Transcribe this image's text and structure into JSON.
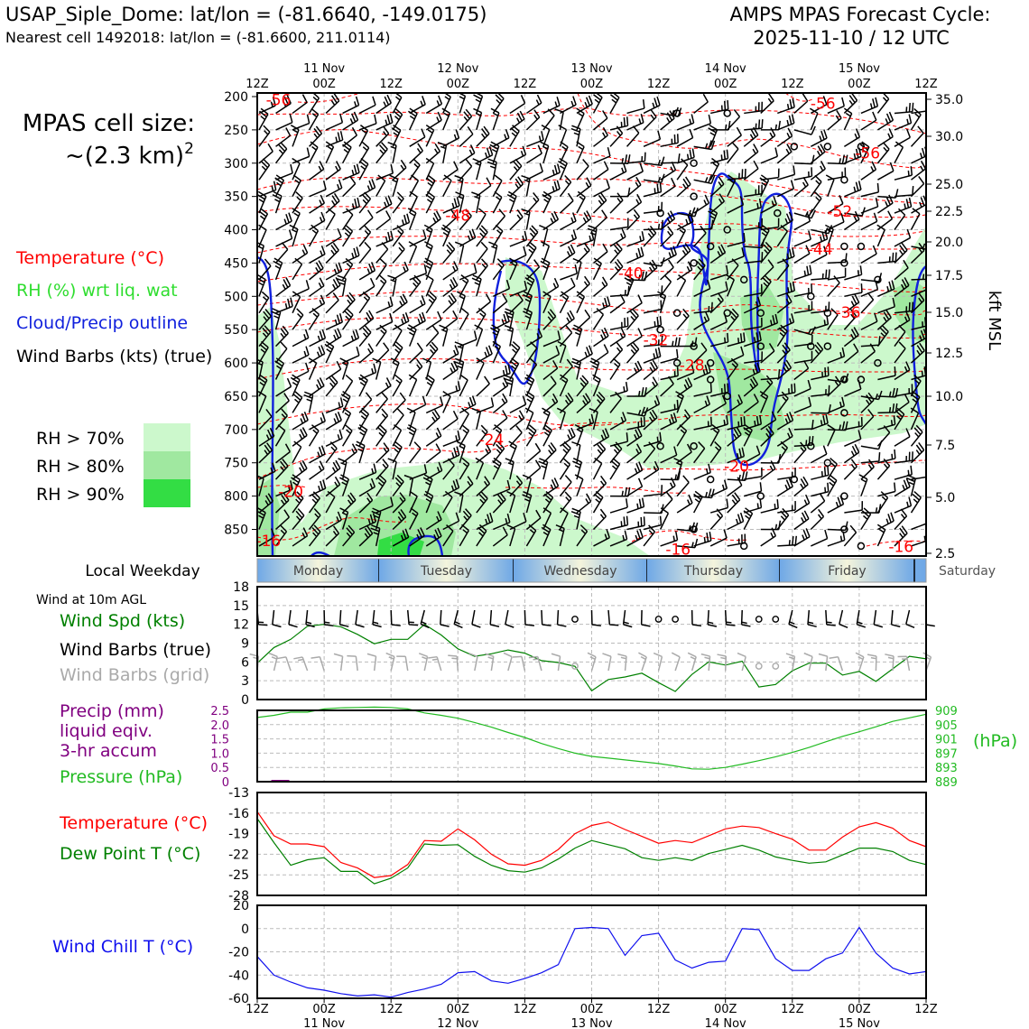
{
  "header": {
    "station": "USAP_Siple_Dome: lat/lon = (-81.6640, -149.0175)",
    "nearest": "Nearest cell 1492018: lat/lon = (-81.6600, 211.0114)",
    "forecast_line1": "AMPS MPAS Forecast Cycle:",
    "forecast_line2": "2025-11-10 / 12 UTC"
  },
  "cell_size": {
    "line1": "MPAS cell size:",
    "line2": "~(2.3 km)",
    "sup": "2"
  },
  "legend": {
    "temperature": "Temperature (°C)",
    "rh": "RH (%) wrt liq. wat",
    "cloud": "Cloud/Precip outline",
    "barbs": "Wind Barbs (kts) (true)",
    "rh70": "RH > 70%",
    "rh80": "RH > 80%",
    "rh90": "RH > 90%",
    "colors": {
      "rh70": "#ccf8cc",
      "rh80": "#a0e8a0",
      "rh90": "#33dd44",
      "temp": "#ff0000",
      "cloud": "#1020dd",
      "rhText": "#2edd2e"
    }
  },
  "time_axis": {
    "hours": [
      "12Z",
      "00Z",
      "12Z",
      "00Z",
      "12Z",
      "00Z",
      "12Z",
      "00Z",
      "12Z",
      "00Z",
      "12Z"
    ],
    "dates": [
      "",
      "11 Nov",
      "",
      "12 Nov",
      "",
      "13 Nov",
      "",
      "14 Nov",
      "",
      "15 Nov",
      ""
    ]
  },
  "weekday": {
    "label": "Local Weekday",
    "days": [
      "Monday",
      "Tuesday",
      "Wednesday",
      "Thursday",
      "Friday",
      "Saturday"
    ]
  },
  "panels": {
    "wind10m_title": "Wind at 10m AGL",
    "wind_spd": "Wind Spd (kts)",
    "barbs_true": "Wind Barbs (true)",
    "barbs_grid": "Wind Barbs (grid)",
    "precip1": "Precip (mm)",
    "precip2": "liquid eqiv.",
    "precip3": "3-hr accum",
    "pressure": "Pressure (hPa)",
    "hpa_unit": "(hPa)",
    "temp": "Temperature (°C)",
    "dewpoint": "Dew Point T (°C)",
    "windchill": "Wind Chill T (°C)",
    "kft": "kft MSL"
  },
  "chart_data": [
    {
      "type": "heatmap",
      "name": "time-height cross section",
      "y_left_label": "Pressure (hPa)",
      "y_right_label": "kft MSL",
      "y_left_ticks": [
        200,
        250,
        300,
        350,
        400,
        450,
        500,
        550,
        600,
        650,
        700,
        750,
        800,
        850
      ],
      "y_right_ticks": [
        "35.0",
        "30.0",
        "25.0",
        "22.5",
        "20.0",
        "17.5",
        "15.0",
        "12.5",
        "10.0",
        "7.5",
        "5.0",
        "2.5"
      ],
      "temperature_contours": [
        {
          "label": "-56",
          "t": 3.8,
          "p": 205
        },
        {
          "label": "-56",
          "t": 101.5,
          "p": 210
        },
        {
          "label": "-56",
          "t": 109.5,
          "p": 285
        },
        {
          "label": "-52",
          "t": 104.5,
          "p": 372
        },
        {
          "label": "-48",
          "t": 36,
          "p": 378
        },
        {
          "label": "-44",
          "t": 101,
          "p": 429
        },
        {
          "label": "-40",
          "t": 67,
          "p": 465
        },
        {
          "label": "-36",
          "t": 106,
          "p": 524
        },
        {
          "label": "-32",
          "t": 71.5,
          "p": 565
        },
        {
          "label": "-28",
          "t": 78,
          "p": 603
        },
        {
          "label": "-24",
          "t": 42,
          "p": 715
        },
        {
          "label": "-20",
          "t": 6,
          "p": 793
        },
        {
          "label": "-20",
          "t": 86,
          "p": 755
        },
        {
          "label": "-16",
          "t": 2,
          "p": 867
        },
        {
          "label": "-16",
          "t": 75.5,
          "p": 880
        },
        {
          "label": "-16",
          "t": 115.5,
          "p": 876
        }
      ],
      "calm_points_hours": [
        72,
        75,
        78,
        81,
        84,
        87,
        90,
        93,
        96,
        99,
        102,
        105,
        108,
        111,
        114
      ]
    },
    {
      "type": "line",
      "name": "10m wind speed",
      "ylabel": "Wind Spd (kts)",
      "ylim": [
        0,
        18
      ],
      "yticks": [
        0,
        3,
        6,
        9,
        12,
        15,
        18
      ],
      "x_hours": [
        0,
        3,
        6,
        9,
        12,
        15,
        18,
        21,
        24,
        27,
        30,
        33,
        36,
        39,
        42,
        45,
        48,
        51,
        54,
        57,
        60,
        63,
        66,
        69,
        72,
        75,
        78,
        81,
        84,
        87,
        90,
        93,
        96,
        99,
        102,
        105,
        108,
        111,
        114,
        117,
        120
      ],
      "values": [
        5.8,
        8.3,
        9.6,
        11.7,
        12.0,
        11.6,
        10.4,
        8.9,
        9.6,
        9.6,
        12.0,
        10.3,
        8.1,
        6.9,
        7.3,
        7.9,
        7.4,
        6.2,
        5.9,
        5.3,
        1.4,
        3.2,
        3.6,
        4.2,
        2.7,
        1.3,
        4.0,
        6.0,
        5.5,
        6.1,
        2.0,
        2.4,
        4.6,
        5.8,
        5.8,
        3.9,
        4.5,
        2.9,
        4.9,
        6.9,
        6.5
      ],
      "calm_true_hours": [
        57,
        72,
        75,
        90,
        93
      ],
      "calm_grid_hours": [
        57,
        90,
        93
      ]
    },
    {
      "type": "line",
      "name": "precip and pressure",
      "ylabel": "Precip (mm) / Pressure (hPa)",
      "precip_yticks": [
        "0",
        "0.5",
        "1.0",
        "1.5",
        "2.0",
        "2.5"
      ],
      "pressure_yticks": [
        "889",
        "893",
        "897",
        "901",
        "905",
        "909"
      ],
      "ylim": [
        889,
        909
      ],
      "x_hours": [
        0,
        3,
        6,
        9,
        12,
        15,
        18,
        21,
        24,
        27,
        30,
        33,
        36,
        39,
        42,
        45,
        48,
        51,
        54,
        57,
        60,
        63,
        66,
        69,
        72,
        75,
        78,
        81,
        84,
        87,
        90,
        93,
        96,
        99,
        102,
        105,
        108,
        111,
        114,
        117,
        120
      ],
      "pressure": [
        907.0,
        907.6,
        908.5,
        908.5,
        909.4,
        909.7,
        909.8,
        909.9,
        909.8,
        909.4,
        908.3,
        907.6,
        906.8,
        905.6,
        904.3,
        902.8,
        901.4,
        899.7,
        898.3,
        897.0,
        896.1,
        895.6,
        895.1,
        894.6,
        894.1,
        893.4,
        892.6,
        892.5,
        893.0,
        893.9,
        894.9,
        896.0,
        897.2,
        898.6,
        900.2,
        901.7,
        903.0,
        904.4,
        905.9,
        906.9,
        907.9
      ],
      "precip": [
        0,
        0.03,
        0,
        0,
        0,
        0,
        0,
        0,
        0,
        0,
        0,
        0,
        0,
        0,
        0,
        0,
        0,
        0,
        0,
        0,
        0,
        0,
        0,
        0,
        0,
        0,
        0,
        0,
        0,
        0,
        0,
        0,
        0,
        0,
        0,
        0,
        0,
        0,
        0,
        0,
        0
      ]
    },
    {
      "type": "line",
      "name": "temperature and dew point",
      "ylim": [
        -28,
        -13
      ],
      "yticks": [
        -28,
        -25,
        -22,
        -19,
        -16,
        -13
      ],
      "x_hours": [
        0,
        3,
        6,
        9,
        12,
        15,
        18,
        21,
        24,
        27,
        30,
        33,
        36,
        39,
        42,
        45,
        48,
        51,
        54,
        57,
        60,
        63,
        66,
        69,
        72,
        75,
        78,
        81,
        84,
        87,
        90,
        93,
        96,
        99,
        102,
        105,
        108,
        111,
        114,
        117,
        120
      ],
      "series": [
        {
          "name": "Temperature",
          "color": "#ff0000",
          "values": [
            -15.8,
            -19.3,
            -20.5,
            -20.5,
            -20.9,
            -23.2,
            -24.0,
            -25.4,
            -25.1,
            -23.5,
            -20.0,
            -20.1,
            -18.3,
            -19.9,
            -22.0,
            -23.4,
            -23.6,
            -22.9,
            -21.3,
            -19.0,
            -17.8,
            -17.3,
            -18.4,
            -19.4,
            -20.4,
            -20.0,
            -20.3,
            -19.3,
            -18.3,
            -17.9,
            -18.1,
            -19.0,
            -19.8,
            -21.4,
            -21.4,
            -19.5,
            -18.0,
            -17.4,
            -18.2,
            -20.0,
            -20.9
          ]
        },
        {
          "name": "Dew Point T",
          "color": "#008000",
          "values": [
            -16.8,
            -20.3,
            -23.6,
            -22.8,
            -22.5,
            -24.5,
            -24.5,
            -26.3,
            -25.5,
            -24.0,
            -20.5,
            -20.7,
            -20.6,
            -22.3,
            -23.6,
            -24.4,
            -24.6,
            -24.0,
            -22.7,
            -21.1,
            -20.0,
            -20.6,
            -21.2,
            -22.5,
            -22.9,
            -22.5,
            -22.9,
            -21.9,
            -21.3,
            -20.7,
            -21.4,
            -22.4,
            -22.9,
            -23.3,
            -23.1,
            -22.1,
            -21.1,
            -21.1,
            -21.6,
            -22.9,
            -23.5
          ]
        }
      ]
    },
    {
      "type": "line",
      "name": "wind chill",
      "ylabel": "Wind Chill T (°C)",
      "ylim": [
        -60,
        20
      ],
      "yticks": [
        -60,
        -40,
        -20,
        0,
        20
      ],
      "x_hours": [
        0,
        3,
        6,
        9,
        12,
        15,
        18,
        21,
        24,
        27,
        30,
        33,
        36,
        39,
        42,
        45,
        48,
        51,
        54,
        57,
        60,
        63,
        66,
        69,
        72,
        75,
        78,
        81,
        84,
        87,
        90,
        93,
        96,
        99,
        102,
        105,
        108,
        111,
        114,
        117,
        120
      ],
      "values": [
        -24,
        -40,
        -46,
        -51,
        -53,
        -56,
        -58,
        -57,
        -59,
        -55,
        -52,
        -48,
        -38,
        -37,
        -45,
        -47,
        -43,
        -38,
        -31,
        0,
        1,
        0,
        -23,
        -6,
        -4,
        -27,
        -34,
        -29,
        -28,
        0,
        -1,
        -26,
        -36,
        -36,
        -26,
        -21,
        1,
        -21,
        -34,
        -39,
        -37
      ]
    }
  ]
}
